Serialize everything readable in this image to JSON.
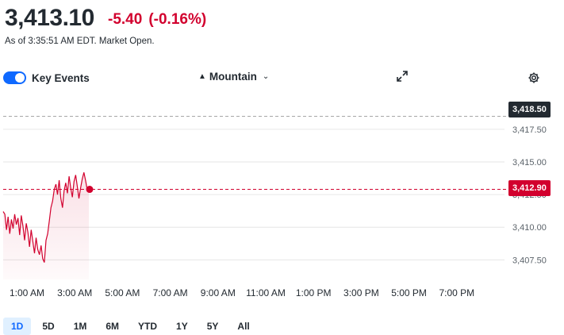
{
  "quote": {
    "price": "3,413.10",
    "change": "-5.40",
    "change_pct": "(-0.16%)",
    "as_of": "As of 3:35:51 AM EDT. Market Open."
  },
  "controls": {
    "key_events_label": "Key Events",
    "key_events_on": true,
    "chart_type_label": "Mountain",
    "chart_type_icon": "mountain-icon",
    "expand_icon": "expand-icon",
    "settings_icon": "gear-icon"
  },
  "tags": {
    "high": "3,418.50",
    "current": "3,412.90"
  },
  "ranges": [
    "1D",
    "5D",
    "1M",
    "6M",
    "YTD",
    "1Y",
    "5Y",
    "All"
  ],
  "active_range": "1D",
  "colors": {
    "down": "#d2002e",
    "accent": "#0f69ff",
    "text": "#232a31"
  },
  "chart_data": {
    "type": "area",
    "yticks": [
      "3,417.50",
      "3,415.00",
      "3,412.50",
      "3,410.00",
      "3,407.50"
    ],
    "yvalues": [
      3417.5,
      3415.0,
      3412.5,
      3410.0,
      3407.5
    ],
    "ylim": [
      3406.0,
      3419.5
    ],
    "xticks": [
      "1:00 AM",
      "3:00 AM",
      "5:00 AM",
      "7:00 AM",
      "9:00 AM",
      "11:00 AM",
      "1:00 PM",
      "3:00 PM",
      "5:00 PM",
      "7:00 PM"
    ],
    "reference_line": 3418.5,
    "current_line": 3412.9,
    "series": [
      {
        "values": [
          3411.2,
          3411.0,
          3409.8,
          3410.8,
          3409.5,
          3410.6,
          3409.9,
          3411.0,
          3410.2,
          3410.7,
          3409.4,
          3410.9,
          3410.1,
          3409.0,
          3410.3,
          3409.6,
          3408.5,
          3409.8,
          3408.9,
          3408.0,
          3409.2,
          3408.3,
          3407.9,
          3408.6,
          3407.6,
          3407.3,
          3409.0,
          3409.5,
          3410.5,
          3411.5,
          3412.0,
          3412.9,
          3413.3,
          3412.5,
          3413.6,
          3412.2,
          3411.5,
          3412.8,
          3413.4,
          3412.6,
          3413.9,
          3413.0,
          3412.3,
          3413.5,
          3414.0,
          3413.1,
          3412.2,
          3413.0,
          3413.7,
          3414.2,
          3413.6,
          3412.9,
          3413.1
        ]
      }
    ]
  }
}
